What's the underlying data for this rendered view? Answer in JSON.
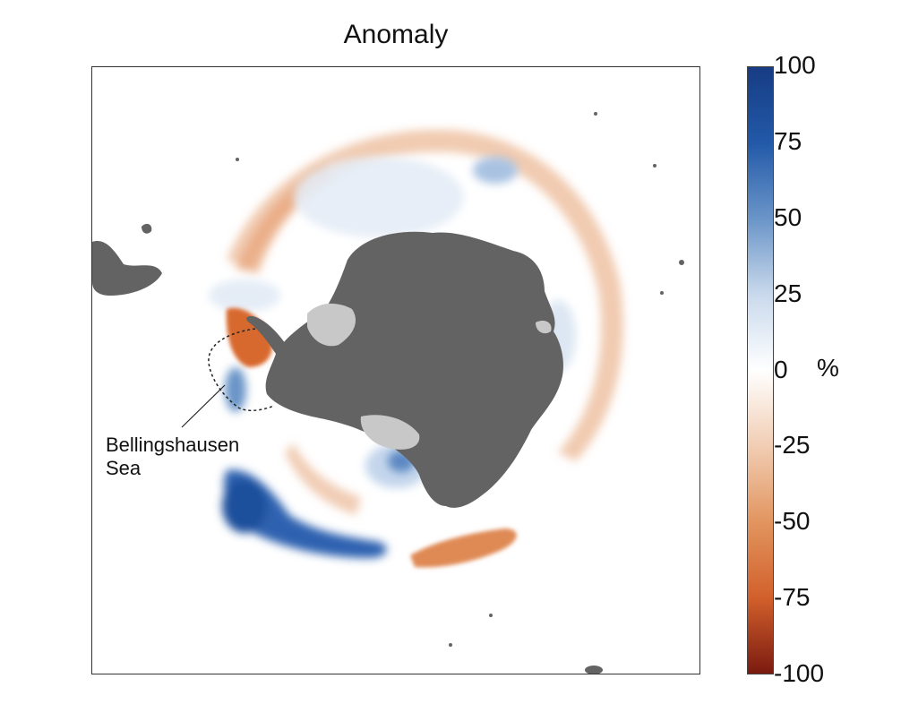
{
  "title": "Anomaly",
  "annotation": {
    "text_line1": "Bellingshausen",
    "text_line2": "Sea"
  },
  "colorbar": {
    "unit": "%",
    "min": -100,
    "max": 100,
    "ticks": [
      "100",
      "75",
      "50",
      "25",
      "0",
      "-25",
      "-50",
      "-75",
      "-100"
    ],
    "colors": [
      "#173c84",
      "#2259a8",
      "#6a95c8",
      "#c9d9ec",
      "#ffffff",
      "#f1cdb3",
      "#e2955f",
      "#d2602b",
      "#7a1a10"
    ]
  },
  "map_colors": {
    "land": "#636363",
    "ice_shelf": "#c8c8c8",
    "ocean": "#ffffff",
    "positive_strong": "#2d62b0",
    "positive_light": "#d7e3f1",
    "negative_strong": "#d8692f",
    "negative_light": "#f3d2bd"
  }
}
